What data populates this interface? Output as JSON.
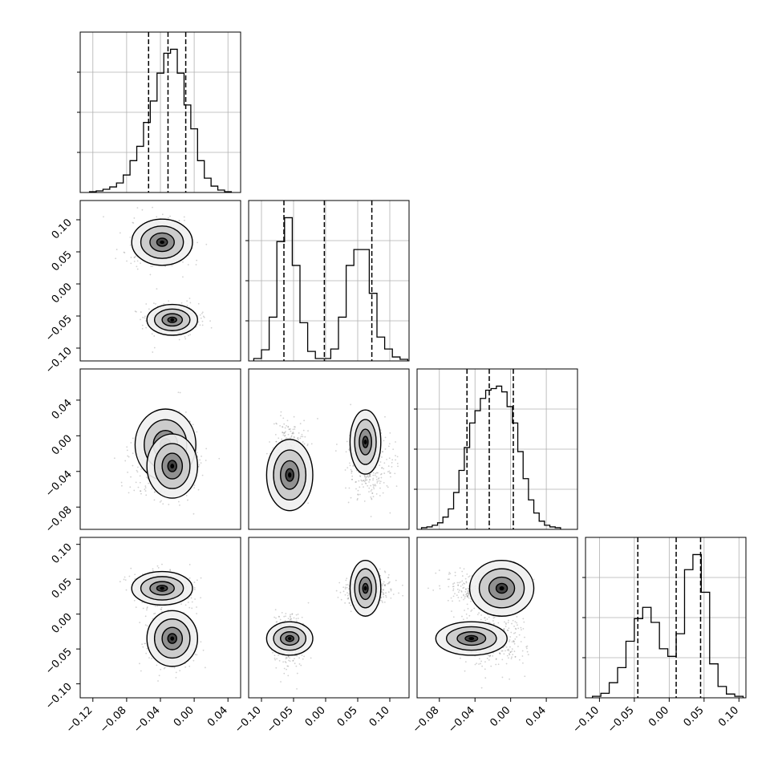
{
  "chart_data": {
    "type": "corner",
    "n_params": 4,
    "grid": true,
    "colors": {
      "line": "#000000",
      "grid": "#b0b0b0",
      "background": "#ffffff"
    },
    "params": [
      {
        "index": 0,
        "range": [
          -0.135,
          0.055
        ],
        "ticks": [
          -0.12,
          -0.08,
          -0.04,
          0.0,
          0.04
        ],
        "tick_labels": [
          "−0.12",
          "−0.08",
          "−0.04",
          "0.00",
          "0.04"
        ],
        "quantiles": [
          -0.054,
          -0.031,
          -0.01
        ]
      },
      {
        "index": 1,
        "range": [
          -0.12,
          0.13
        ],
        "ticks": [
          -0.1,
          -0.05,
          0.0,
          0.05,
          0.1
        ],
        "tick_labels": [
          "−0.10",
          "−0.05",
          "0.00",
          "0.05",
          "0.10"
        ],
        "quantiles": [
          -0.065,
          -0.002,
          0.072
        ]
      },
      {
        "index": 2,
        "range": [
          -0.105,
          0.075
        ],
        "ticks": [
          -0.08,
          -0.04,
          0.0,
          0.04
        ],
        "tick_labels": [
          "−0.08",
          "−0.04",
          "0.00",
          "0.04"
        ],
        "quantiles": [
          -0.049,
          -0.024,
          0.003
        ]
      },
      {
        "index": 3,
        "range": [
          -0.12,
          0.11
        ],
        "ticks": [
          -0.1,
          -0.05,
          0.0,
          0.05,
          0.1
        ],
        "tick_labels": [
          "−0.10",
          "−0.05",
          "0.00",
          "0.05",
          "0.10"
        ],
        "quantiles": [
          -0.045,
          0.01,
          0.045
        ]
      }
    ],
    "histograms": [
      {
        "param": 0,
        "bins": [
          -0.124,
          -0.116,
          -0.108,
          -0.1,
          -0.092,
          -0.084,
          -0.076,
          -0.068,
          -0.06,
          -0.052,
          -0.044,
          -0.036,
          -0.028,
          -0.02,
          -0.012,
          -0.004,
          0.004,
          0.012,
          0.02,
          0.028,
          0.036
        ],
        "counts": [
          1,
          2,
          4,
          7,
          12,
          22,
          40,
          58,
          88,
          115,
          150,
          175,
          180,
          150,
          110,
          80,
          40,
          18,
          8,
          3,
          1
        ]
      },
      {
        "param": 1,
        "bins": [
          -0.112,
          -0.1,
          -0.088,
          -0.076,
          -0.064,
          -0.052,
          -0.04,
          -0.028,
          -0.016,
          -0.004,
          0.008,
          0.02,
          0.032,
          0.044,
          0.056,
          0.068,
          0.08,
          0.092,
          0.104,
          0.116
        ],
        "counts": [
          3,
          14,
          55,
          150,
          180,
          120,
          48,
          12,
          3,
          3,
          15,
          55,
          120,
          140,
          140,
          85,
          30,
          15,
          5,
          2
        ]
      },
      {
        "param": 2,
        "bins": [
          -0.1,
          -0.094,
          -0.088,
          -0.082,
          -0.076,
          -0.07,
          -0.064,
          -0.058,
          -0.052,
          -0.046,
          -0.04,
          -0.034,
          -0.028,
          -0.022,
          -0.016,
          -0.01,
          -0.004,
          0.002,
          0.008,
          0.014,
          0.02,
          0.026,
          0.032,
          0.038,
          0.044,
          0.05
        ],
        "counts": [
          2,
          3,
          5,
          8,
          15,
          25,
          45,
          72,
          100,
          130,
          145,
          160,
          170,
          172,
          175,
          168,
          150,
          130,
          95,
          62,
          36,
          20,
          10,
          5,
          3,
          2
        ]
      },
      {
        "param": 3,
        "bins": [
          -0.11,
          -0.098,
          -0.086,
          -0.074,
          -0.062,
          -0.05,
          -0.038,
          -0.026,
          -0.014,
          -0.002,
          0.01,
          0.022,
          0.034,
          0.046,
          0.058,
          0.07,
          0.082,
          0.094
        ],
        "counts": [
          2,
          6,
          20,
          40,
          75,
          105,
          120,
          100,
          65,
          55,
          85,
          170,
          190,
          140,
          45,
          15,
          5,
          2
        ]
      }
    ],
    "components": [
      {
        "weight": 0.5,
        "mean": [
          -0.038,
          0.065,
          -0.03,
          0.037
        ],
        "sd": [
          0.018,
          0.018,
          0.02,
          0.012
        ]
      },
      {
        "weight": 0.5,
        "mean": [
          -0.026,
          -0.056,
          -0.02,
          -0.035
        ],
        "sd": [
          0.015,
          0.012,
          0.018,
          0.02
        ]
      }
    ],
    "pairs": [
      {
        "x": 0,
        "y": 1,
        "points": [
          [
            -0.038,
            0.065
          ],
          [
            -0.026,
            -0.056
          ]
        ]
      },
      {
        "x": 0,
        "y": 2,
        "points": [
          [
            -0.034,
            -0.01
          ],
          [
            -0.026,
            -0.034
          ]
        ]
      },
      {
        "x": 1,
        "y": 2,
        "points": [
          [
            -0.056,
            -0.044
          ],
          [
            0.062,
            -0.007
          ]
        ]
      },
      {
        "x": 0,
        "y": 3,
        "points": [
          [
            -0.038,
            0.037
          ],
          [
            -0.026,
            -0.035
          ]
        ]
      },
      {
        "x": 1,
        "y": 3,
        "points": [
          [
            -0.056,
            -0.035
          ],
          [
            0.062,
            0.037
          ]
        ]
      },
      {
        "x": 2,
        "y": 3,
        "points": [
          [
            -0.044,
            -0.035
          ],
          [
            -0.01,
            0.037
          ]
        ]
      }
    ]
  }
}
